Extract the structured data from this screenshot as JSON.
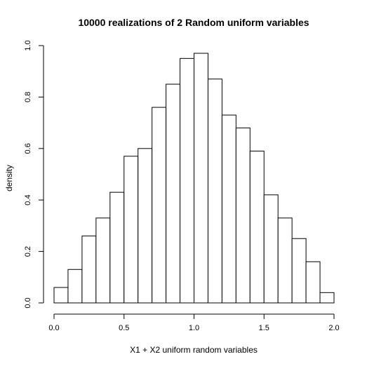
{
  "chart_data": {
    "type": "bar",
    "title": "10000 realizations of 2 Random uniform variables",
    "xlabel": "X1 + X2 uniform random variables",
    "ylabel": "density",
    "bin_edges": [
      0.0,
      0.1,
      0.2,
      0.3,
      0.4,
      0.5,
      0.6,
      0.7,
      0.8,
      0.9,
      1.0,
      1.1,
      1.2,
      1.3,
      1.4,
      1.5,
      1.6,
      1.7,
      1.8,
      1.9,
      2.0
    ],
    "values": [
      0.06,
      0.13,
      0.26,
      0.33,
      0.43,
      0.57,
      0.6,
      0.76,
      0.85,
      0.95,
      0.97,
      0.87,
      0.73,
      0.68,
      0.59,
      0.42,
      0.33,
      0.25,
      0.16,
      0.04
    ],
    "xlim": [
      0.0,
      2.0
    ],
    "ylim": [
      0.0,
      1.0
    ],
    "x_ticks": [
      0.0,
      0.5,
      1.0,
      1.5,
      2.0
    ],
    "x_tick_labels": [
      "0.0",
      "0.5",
      "1.0",
      "1.5",
      "2.0"
    ],
    "y_ticks": [
      0.0,
      0.2,
      0.4,
      0.6,
      0.8,
      1.0
    ],
    "y_tick_labels": [
      "0.0",
      "0.2",
      "0.4",
      "0.6",
      "0.8",
      "1.0"
    ],
    "grid": false,
    "legend": "none",
    "bar_fill": "#ffffff",
    "bar_stroke": "#000000"
  }
}
